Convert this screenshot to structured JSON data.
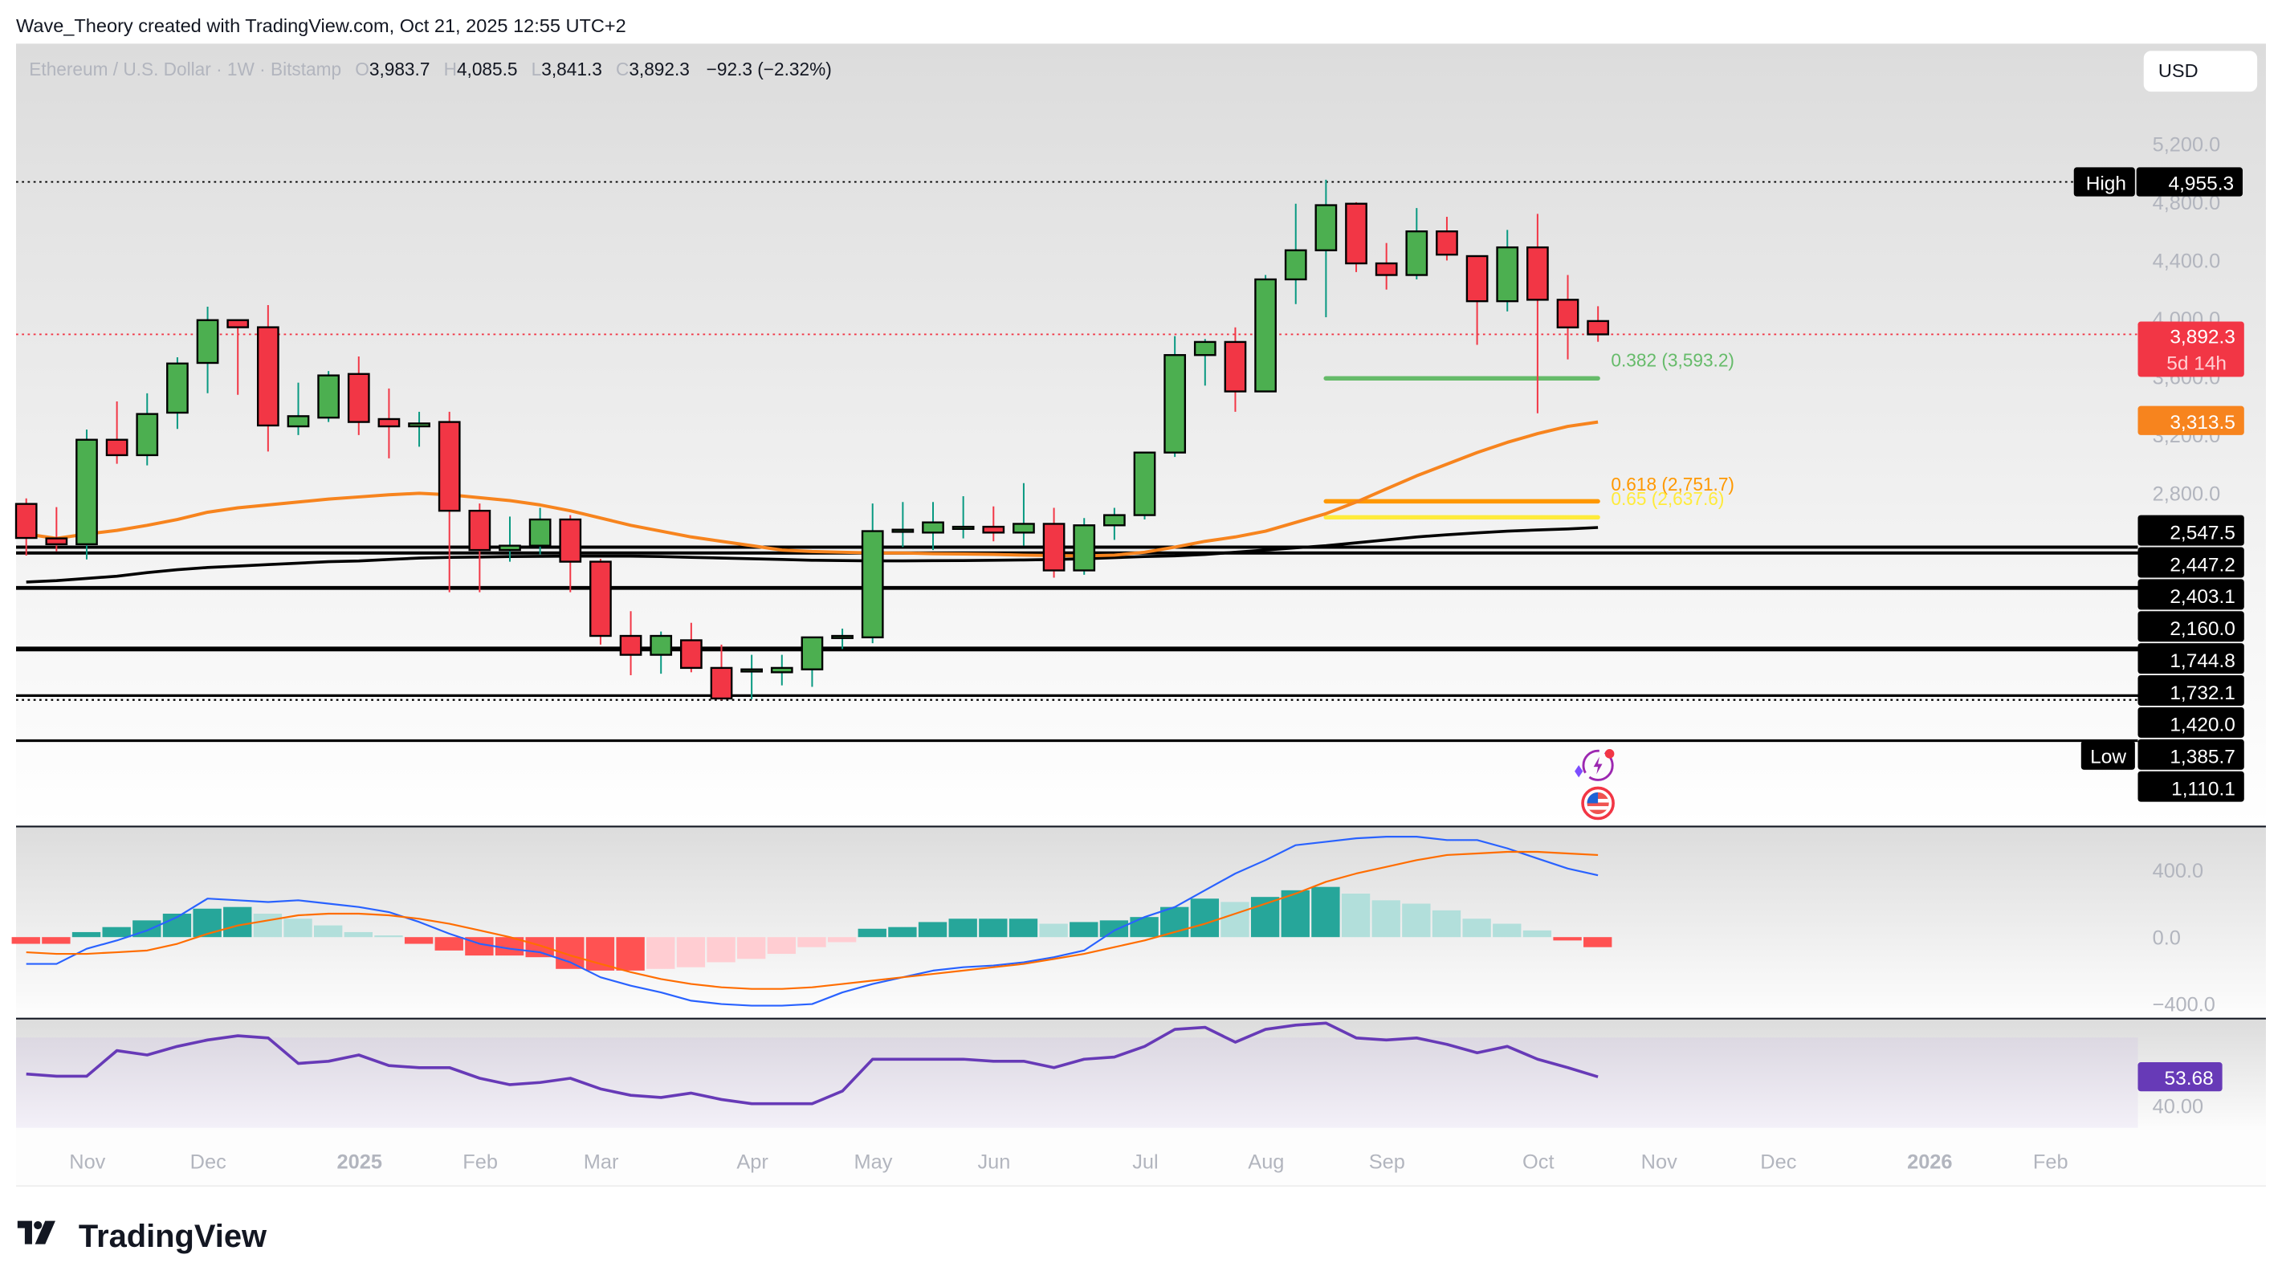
{
  "header": {
    "attribution": "Wave_Theory created with TradingView.com, Oct 21, 2025 12:55 UTC+2"
  },
  "legend": {
    "symbol": "Ethereum / U.S. Dollar · 1W · Bitstamp",
    "open_label": "O",
    "open": "3,983.7",
    "high_label": "H",
    "high": "4,085.5",
    "low_label": "L",
    "low": "3,841.3",
    "close_label": "C",
    "close": "3,892.3",
    "change": "−92.3 (−2.32%)"
  },
  "currency_button": "USD",
  "footer": {
    "logo_text": "TradingView"
  },
  "colors": {
    "up": "#4caf50",
    "down": "#f23645",
    "up_wick": "#089981",
    "down_wick": "#f23645",
    "ma_orange": "#f7841e",
    "ma_black": "#000000",
    "fib_382": "#66bb6a",
    "fib_618": "#ff9800",
    "fib_65": "#ffeb3b",
    "macd": "#2962ff",
    "signal": "#ff6d00",
    "hist_up_strong": "#26a69a",
    "hist_up_weak": "#b2dfdb",
    "hist_down_strong": "#ff5252",
    "hist_down_weak": "#ffcdd2",
    "rsi": "#673ab7",
    "axis_text": "#b2b5be"
  },
  "chart_data": {
    "type": "candlestick",
    "title": "Ethereum / U.S. Dollar · 1W · Bitstamp",
    "price_axis": {
      "ticks": [
        "5,200.0",
        "4,800.0",
        "4,400.0",
        "4,000.0",
        "3,600.0",
        "3,200.0",
        "2,800.0"
      ],
      "tick_values": [
        5200,
        4800,
        4400,
        4000,
        3600,
        3200,
        2800
      ]
    },
    "time_axis": {
      "labels": [
        "Nov",
        "Dec",
        "2025",
        "Feb",
        "Mar",
        "Apr",
        "May",
        "Jun",
        "Jul",
        "Aug",
        "Sep",
        "Oct",
        "Nov",
        "Dec",
        "2026",
        "Feb"
      ],
      "bold": [
        false,
        false,
        true,
        false,
        false,
        false,
        false,
        false,
        false,
        false,
        false,
        false,
        false,
        false,
        true,
        false
      ],
      "x": [
        60,
        143,
        247,
        330,
        413,
        517,
        600,
        683,
        787,
        870,
        953,
        1057,
        1140,
        1222,
        1326,
        1409
      ]
    },
    "candles": [
      [
        2727,
        2765,
        2372,
        2493
      ],
      [
        2490,
        2705,
        2401,
        2450
      ],
      [
        2450,
        3238,
        2346,
        3168
      ],
      [
        3168,
        3431,
        3003,
        3062
      ],
      [
        3062,
        3487,
        2992,
        3345
      ],
      [
        3354,
        3735,
        3242,
        3692
      ],
      [
        3696,
        4082,
        3488,
        3990
      ],
      [
        3990,
        3990,
        3477,
        3941
      ],
      [
        3941,
        4093,
        3087,
        3266
      ],
      [
        3260,
        3560,
        3200,
        3330
      ],
      [
        3320,
        3640,
        3290,
        3610
      ],
      [
        3620,
        3740,
        3200,
        3290
      ],
      [
        3310,
        3520,
        3040,
        3260
      ],
      [
        3260,
        3360,
        3120,
        3280
      ],
      [
        3290,
        3360,
        2120,
        2680
      ],
      [
        2680,
        2730,
        2120,
        2410
      ],
      [
        2410,
        2640,
        2330,
        2440
      ],
      [
        2440,
        2700,
        2380,
        2620
      ],
      [
        2620,
        2650,
        2120,
        2330
      ],
      [
        2330,
        2350,
        1760,
        1820
      ],
      [
        1820,
        1990,
        1550,
        1690
      ],
      [
        1690,
        1850,
        1560,
        1820
      ],
      [
        1790,
        1910,
        1570,
        1600
      ],
      [
        1600,
        1760,
        1380,
        1390
      ],
      [
        1585,
        1690,
        1385,
        1590
      ],
      [
        1570,
        1690,
        1480,
        1600
      ],
      [
        1590,
        1800,
        1470,
        1810
      ],
      [
        1810,
        1870,
        1730,
        1820
      ],
      [
        1810,
        2730,
        1770,
        2540
      ],
      [
        2540,
        2740,
        2430,
        2550
      ],
      [
        2530,
        2740,
        2410,
        2600
      ],
      [
        2560,
        2780,
        2490,
        2570
      ],
      [
        2570,
        2710,
        2470,
        2530
      ],
      [
        2530,
        2870,
        2440,
        2590
      ],
      [
        2590,
        2700,
        2220,
        2270
      ],
      [
        2270,
        2630,
        2240,
        2580
      ],
      [
        2580,
        2700,
        2480,
        2650
      ],
      [
        2650,
        3080,
        2620,
        3080
      ],
      [
        3080,
        3880,
        3050,
        3750
      ],
      [
        3750,
        3860,
        3540,
        3840
      ],
      [
        3840,
        3940,
        3360,
        3500
      ],
      [
        3500,
        4300,
        3500,
        4270
      ],
      [
        4270,
        4790,
        4100,
        4470
      ],
      [
        4470,
        4955,
        4010,
        4780
      ],
      [
        4790,
        4800,
        4320,
        4380
      ],
      [
        4380,
        4520,
        4200,
        4300
      ],
      [
        4300,
        4760,
        4270,
        4600
      ],
      [
        4600,
        4700,
        4400,
        4440
      ],
      [
        4430,
        4430,
        3820,
        4120
      ],
      [
        4120,
        4610,
        4050,
        4490
      ],
      [
        4490,
        4720,
        3350,
        4130
      ],
      [
        4130,
        4300,
        3720,
        3940
      ],
      [
        3983.7,
        4085.5,
        3841.3,
        3892.3
      ]
    ],
    "ma_orange": [
      2520,
      2490,
      2520,
      2545,
      2580,
      2620,
      2670,
      2700,
      2720,
      2740,
      2760,
      2775,
      2790,
      2800,
      2790,
      2770,
      2750,
      2720,
      2680,
      2630,
      2580,
      2540,
      2500,
      2470,
      2440,
      2410,
      2400,
      2395,
      2390,
      2390,
      2385,
      2383,
      2380,
      2375,
      2372,
      2370,
      2375,
      2395,
      2430,
      2470,
      2500,
      2540,
      2600,
      2660,
      2740,
      2830,
      2920,
      3000,
      3080,
      3150,
      3210,
      3260,
      3290
    ],
    "ma_black": [
      2190,
      2200,
      2215,
      2230,
      2255,
      2275,
      2290,
      2300,
      2310,
      2320,
      2330,
      2335,
      2345,
      2355,
      2360,
      2362,
      2365,
      2367,
      2368,
      2368,
      2368,
      2365,
      2360,
      2355,
      2350,
      2345,
      2340,
      2338,
      2336,
      2336,
      2337,
      2338,
      2340,
      2342,
      2345,
      2350,
      2358,
      2365,
      2370,
      2380,
      2395,
      2410,
      2425,
      2440,
      2460,
      2480,
      2500,
      2515,
      2528,
      2540,
      2548,
      2555,
      2565
    ],
    "horizontal_levels": [
      {
        "price": 2547.5,
        "label": "2,547.5"
      },
      {
        "price": 2447.2,
        "label": "2,447.2"
      },
      {
        "price": 2403.1,
        "label": "2,403.1"
      },
      {
        "price": 2160.0,
        "label": "2,160.0"
      },
      {
        "price": 1744.8,
        "label": "1,744.8"
      },
      {
        "price": 1732.1,
        "label": "1,732.1"
      },
      {
        "price": 1420.0,
        "label": "1,420.0"
      },
      {
        "price": 1385.7,
        "label": "1,385.7"
      },
      {
        "price": 1110.1,
        "label": "1,110.1"
      }
    ],
    "fibonacci": [
      {
        "ratio": "0.382",
        "price": 3593.2,
        "label": "0.382 (3,593.2)",
        "color": "#66bb6a"
      },
      {
        "ratio": "0.618",
        "price": 2751.7,
        "label": "0.618 (2,751.7)",
        "color": "#ff9800"
      },
      {
        "ratio": "0.65",
        "price": 2637.6,
        "label": "0.65 (2,637.6)",
        "color": "#ffeb3b"
      }
    ],
    "markers": {
      "high_label": "High",
      "high_value": "4,955.3",
      "high_price": 4955.3,
      "low_label": "Low",
      "low_value": "1,385.7",
      "last_price": "3,892.3",
      "countdown": "5d 14h",
      "ma_value": "3,313.5"
    },
    "macd": {
      "ticks": [
        "400.0",
        "0.0",
        "−400.0"
      ],
      "histogram": [
        -40,
        -40,
        30,
        60,
        100,
        140,
        170,
        180,
        140,
        110,
        70,
        30,
        10,
        -40,
        -80,
        -110,
        -110,
        -120,
        -190,
        -200,
        -200,
        -190,
        -180,
        -150,
        -130,
        -100,
        -60,
        -30,
        50,
        60,
        90,
        110,
        110,
        110,
        80,
        90,
        100,
        120,
        180,
        230,
        210,
        240,
        280,
        300,
        260,
        220,
        200,
        160,
        110,
        80,
        40,
        -20,
        -60
      ],
      "macd": [
        -160,
        -160,
        -70,
        -20,
        40,
        120,
        230,
        220,
        210,
        220,
        200,
        180,
        150,
        90,
        20,
        -40,
        -70,
        -90,
        -150,
        -240,
        -290,
        -330,
        -380,
        -400,
        -410,
        -410,
        -400,
        -330,
        -280,
        -240,
        -200,
        -180,
        -170,
        -150,
        -120,
        -80,
        40,
        120,
        180,
        280,
        380,
        460,
        550,
        570,
        590,
        600,
        600,
        580,
        580,
        530,
        470,
        410,
        370
      ],
      "signal": [
        -90,
        -100,
        -100,
        -90,
        -80,
        -40,
        20,
        70,
        100,
        130,
        140,
        140,
        130,
        110,
        80,
        40,
        0,
        -50,
        -110,
        -160,
        -210,
        -250,
        -280,
        -300,
        -310,
        -310,
        -300,
        -280,
        -260,
        -240,
        -220,
        -200,
        -180,
        -160,
        -130,
        -100,
        -60,
        -20,
        30,
        80,
        140,
        200,
        260,
        330,
        380,
        420,
        460,
        490,
        500,
        510,
        510,
        500,
        490
      ]
    },
    "rsi": {
      "value": "53.68",
      "ticks": [
        "40.00"
      ],
      "values": [
        55,
        54,
        54,
        66,
        64,
        68,
        71,
        73,
        72,
        60,
        61,
        64,
        59,
        58,
        58,
        53,
        50,
        51,
        53,
        48,
        45,
        44,
        46,
        43,
        41,
        41,
        41,
        47,
        62,
        62,
        62,
        62,
        61,
        61,
        58,
        62,
        63,
        68,
        76,
        77,
        70,
        76,
        78,
        79,
        72,
        71,
        72,
        69,
        65,
        68,
        62,
        58,
        53.68
      ]
    }
  }
}
